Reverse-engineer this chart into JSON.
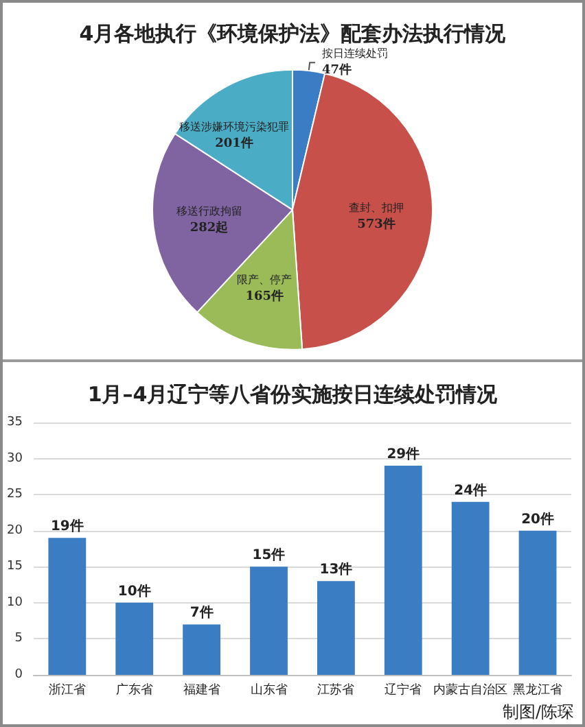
{
  "chart_data": [
    {
      "type": "pie",
      "title": "4月各地执行《环境保护法》配套办法执行情况",
      "categories": [
        "按日连续处罚",
        "查封、扣押",
        "限产、停产",
        "移送行政拘留",
        "移送涉嫌环境污染犯罪"
      ],
      "values": [
        47,
        573,
        165,
        282,
        201
      ],
      "colors": [
        "#3b7dc4",
        "#c8504a",
        "#9bbb59",
        "#8064a2",
        "#4bacc6"
      ],
      "value_labels": [
        "47件",
        "573件",
        "165件",
        "282起",
        "201件"
      ]
    },
    {
      "type": "bar",
      "title": "1月–4月辽宁等八省份实施按日连续处罚情况",
      "categories": [
        "浙江省",
        "广东省",
        "福建省",
        "山东省",
        "江苏省",
        "辽宁省",
        "内蒙古自治区",
        "黑龙江省"
      ],
      "values": [
        19,
        10,
        7,
        15,
        13,
        29,
        24,
        20
      ],
      "color": "#3a7dc3",
      "value_labels": [
        "19件",
        "10件",
        "7件",
        "15件",
        "13件",
        "29件",
        "24件",
        "20件"
      ],
      "ylim": [
        0,
        35
      ],
      "yticks": [
        0,
        5,
        10,
        15,
        20,
        25,
        30,
        35
      ],
      "grid": "y",
      "annotations": [
        "制图/陈琛"
      ]
    }
  ]
}
